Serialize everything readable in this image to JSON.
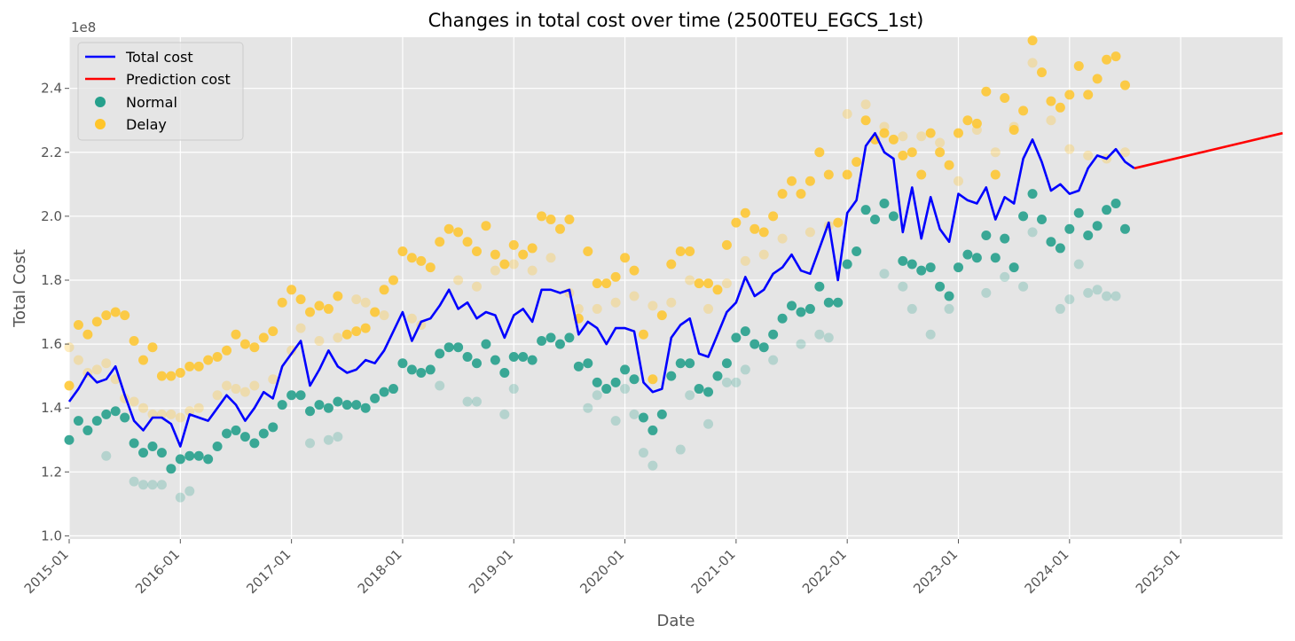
{
  "chart_data": {
    "type": "line",
    "title": "Changes in total cost over time (2500TEU_EGCS_1st)",
    "xlabel": "Date",
    "ylabel": "Total Cost",
    "y_scale_label": "1e8",
    "y_multiplier": 100000000,
    "xlim": [
      "2015-01",
      "2025-12"
    ],
    "ylim": [
      0.99,
      2.56
    ],
    "x_ticks": [
      "2015-01",
      "2016-01",
      "2017-01",
      "2018-01",
      "2019-01",
      "2020-01",
      "2021-01",
      "2022-01",
      "2023-01",
      "2024-01",
      "2025-01"
    ],
    "y_ticks": [
      1.0,
      1.2,
      1.4,
      1.6,
      1.8,
      2.0,
      2.2,
      2.4
    ],
    "y_tick_labels": [
      "1.0",
      "1.2",
      "1.4",
      "1.6",
      "1.8",
      "2.0",
      "2.2",
      "2.4"
    ],
    "grid": true,
    "legend_position": "top-left",
    "colors": {
      "total": "#0000ff",
      "prediction": "#ff0000",
      "normal": "#26a08c",
      "delay": "#ffc52a",
      "background": "#e5e5e5",
      "grid": "#ffffff"
    },
    "series": [
      {
        "name": "Total cost",
        "kind": "line",
        "x": [
          "2015-01",
          "2015-02",
          "2015-03",
          "2015-04",
          "2015-05",
          "2015-06",
          "2015-07",
          "2015-08",
          "2015-09",
          "2015-10",
          "2015-11",
          "2015-12",
          "2016-01",
          "2016-02",
          "2016-03",
          "2016-04",
          "2016-05",
          "2016-06",
          "2016-07",
          "2016-08",
          "2016-09",
          "2016-10",
          "2016-11",
          "2016-12",
          "2017-01",
          "2017-02",
          "2017-03",
          "2017-04",
          "2017-05",
          "2017-06",
          "2017-07",
          "2017-08",
          "2017-09",
          "2017-10",
          "2017-11",
          "2017-12",
          "2018-01",
          "2018-02",
          "2018-03",
          "2018-04",
          "2018-05",
          "2018-06",
          "2018-07",
          "2018-08",
          "2018-09",
          "2018-10",
          "2018-11",
          "2018-12",
          "2019-01",
          "2019-02",
          "2019-03",
          "2019-04",
          "2019-05",
          "2019-06",
          "2019-07",
          "2019-08",
          "2019-09",
          "2019-10",
          "2019-11",
          "2019-12",
          "2020-01",
          "2020-02",
          "2020-03",
          "2020-04",
          "2020-05",
          "2020-06",
          "2020-07",
          "2020-08",
          "2020-09",
          "2020-10",
          "2020-11",
          "2020-12",
          "2021-01",
          "2021-02",
          "2021-03",
          "2021-04",
          "2021-05",
          "2021-06",
          "2021-07",
          "2021-08",
          "2021-09",
          "2021-10",
          "2021-11",
          "2021-12",
          "2022-01",
          "2022-02",
          "2022-03",
          "2022-04",
          "2022-05",
          "2022-06",
          "2022-07",
          "2022-08",
          "2022-09",
          "2022-10",
          "2022-11",
          "2022-12",
          "2023-01",
          "2023-02",
          "2023-03",
          "2023-04",
          "2023-05",
          "2023-06",
          "2023-07",
          "2023-08",
          "2023-09",
          "2023-10",
          "2023-11",
          "2023-12",
          "2024-01",
          "2024-02",
          "2024-03",
          "2024-04",
          "2024-05",
          "2024-06",
          "2024-07",
          "2024-08"
        ],
        "values": [
          1.42,
          1.46,
          1.51,
          1.48,
          1.49,
          1.53,
          1.44,
          1.36,
          1.33,
          1.37,
          1.37,
          1.35,
          1.28,
          1.38,
          1.37,
          1.36,
          1.4,
          1.44,
          1.41,
          1.36,
          1.4,
          1.45,
          1.43,
          1.53,
          1.57,
          1.61,
          1.47,
          1.52,
          1.58,
          1.53,
          1.51,
          1.52,
          1.55,
          1.54,
          1.58,
          1.64,
          1.7,
          1.61,
          1.67,
          1.68,
          1.72,
          1.77,
          1.71,
          1.73,
          1.68,
          1.7,
          1.69,
          1.62,
          1.69,
          1.71,
          1.67,
          1.77,
          1.77,
          1.76,
          1.77,
          1.63,
          1.67,
          1.65,
          1.6,
          1.65,
          1.65,
          1.64,
          1.48,
          1.45,
          1.46,
          1.62,
          1.66,
          1.68,
          1.57,
          1.56,
          1.63,
          1.7,
          1.73,
          1.81,
          1.75,
          1.77,
          1.82,
          1.84,
          1.88,
          1.83,
          1.82,
          1.9,
          1.98,
          1.8,
          2.01,
          2.05,
          2.22,
          2.26,
          2.2,
          2.18,
          1.95,
          2.09,
          1.93,
          2.06,
          1.96,
          1.92,
          2.07,
          2.05,
          2.04,
          2.09,
          1.99,
          2.06,
          2.04,
          2.18,
          2.24,
          2.17,
          2.08,
          2.1,
          2.07,
          2.08,
          2.15,
          2.19,
          2.18,
          2.21,
          2.17,
          2.15
        ]
      },
      {
        "name": "Prediction cost",
        "kind": "line",
        "x": [
          "2024-08",
          "2025-12"
        ],
        "values": [
          2.15,
          2.26
        ]
      },
      {
        "name": "Normal",
        "kind": "scatter",
        "x": [
          "2015-01",
          "2015-02",
          "2015-03",
          "2015-04",
          "2015-05",
          "2015-06",
          "2015-07",
          "2015-08",
          "2015-09",
          "2015-10",
          "2015-11",
          "2015-12",
          "2016-01",
          "2016-02",
          "2016-03",
          "2016-04",
          "2016-05",
          "2016-06",
          "2016-07",
          "2016-08",
          "2016-09",
          "2016-10",
          "2016-11",
          "2016-12",
          "2017-01",
          "2017-02",
          "2017-03",
          "2017-04",
          "2017-05",
          "2017-06",
          "2017-07",
          "2017-08",
          "2017-09",
          "2017-10",
          "2017-11",
          "2017-12",
          "2018-01",
          "2018-02",
          "2018-03",
          "2018-04",
          "2018-05",
          "2018-06",
          "2018-07",
          "2018-08",
          "2018-09",
          "2018-10",
          "2018-11",
          "2018-12",
          "2019-01",
          "2019-02",
          "2019-03",
          "2019-04",
          "2019-05",
          "2019-06",
          "2019-07",
          "2019-08",
          "2019-09",
          "2019-10",
          "2019-11",
          "2019-12",
          "2020-01",
          "2020-02",
          "2020-03",
          "2020-04",
          "2020-05",
          "2020-06",
          "2020-07",
          "2020-08",
          "2020-09",
          "2020-10",
          "2020-11",
          "2020-12",
          "2021-01",
          "2021-02",
          "2021-03",
          "2021-04",
          "2021-05",
          "2021-06",
          "2021-07",
          "2021-08",
          "2021-09",
          "2021-10",
          "2021-11",
          "2021-12",
          "2022-01",
          "2022-02",
          "2022-03",
          "2022-04",
          "2022-05",
          "2022-06",
          "2022-07",
          "2022-08",
          "2022-09",
          "2022-10",
          "2022-11",
          "2022-12",
          "2023-01",
          "2023-02",
          "2023-03",
          "2023-04",
          "2023-05",
          "2023-06",
          "2023-07",
          "2023-08",
          "2023-09",
          "2023-10",
          "2023-11",
          "2023-12",
          "2024-01",
          "2024-02",
          "2024-03",
          "2024-04",
          "2024-05",
          "2024-06",
          "2024-07"
        ],
        "values": [
          1.3,
          1.36,
          1.33,
          1.36,
          1.38,
          1.39,
          1.37,
          1.29,
          1.26,
          1.28,
          1.26,
          1.21,
          1.24,
          1.25,
          1.25,
          1.24,
          1.28,
          1.32,
          1.33,
          1.31,
          1.29,
          1.32,
          1.34,
          1.41,
          1.44,
          1.44,
          1.39,
          1.41,
          1.4,
          1.42,
          1.41,
          1.41,
          1.4,
          1.43,
          1.45,
          1.46,
          1.54,
          1.52,
          1.51,
          1.52,
          1.57,
          1.59,
          1.59,
          1.56,
          1.54,
          1.6,
          1.55,
          1.51,
          1.56,
          1.56,
          1.55,
          1.61,
          1.62,
          1.6,
          1.62,
          1.53,
          1.54,
          1.48,
          1.46,
          1.48,
          1.52,
          1.49,
          1.37,
          1.33,
          1.38,
          1.5,
          1.54,
          1.54,
          1.46,
          1.45,
          1.5,
          1.54,
          1.62,
          1.64,
          1.6,
          1.59,
          1.63,
          1.68,
          1.72,
          1.7,
          1.71,
          1.78,
          1.73,
          1.73,
          1.85,
          1.89,
          2.02,
          1.99,
          2.04,
          2.0,
          1.86,
          1.85,
          1.83,
          1.84,
          1.78,
          1.75,
          1.84,
          1.88,
          1.87,
          1.94,
          1.87,
          1.93,
          1.84,
          2.0,
          2.07,
          1.99,
          1.92,
          1.9,
          1.96,
          2.01,
          1.94,
          1.97,
          2.02,
          2.04,
          1.96
        ]
      },
      {
        "name": "Delay",
        "kind": "scatter",
        "x": [
          "2015-01",
          "2015-02",
          "2015-03",
          "2015-04",
          "2015-05",
          "2015-06",
          "2015-07",
          "2015-08",
          "2015-09",
          "2015-10",
          "2015-11",
          "2015-12",
          "2016-01",
          "2016-02",
          "2016-03",
          "2016-04",
          "2016-05",
          "2016-06",
          "2016-07",
          "2016-08",
          "2016-09",
          "2016-10",
          "2016-11",
          "2016-12",
          "2017-01",
          "2017-02",
          "2017-03",
          "2017-04",
          "2017-05",
          "2017-06",
          "2017-07",
          "2017-08",
          "2017-09",
          "2017-10",
          "2017-11",
          "2017-12",
          "2018-01",
          "2018-02",
          "2018-03",
          "2018-04",
          "2018-05",
          "2018-06",
          "2018-07",
          "2018-08",
          "2018-09",
          "2018-10",
          "2018-11",
          "2018-12",
          "2019-01",
          "2019-02",
          "2019-03",
          "2019-04",
          "2019-05",
          "2019-06",
          "2019-07",
          "2019-08",
          "2019-09",
          "2019-10",
          "2019-11",
          "2019-12",
          "2020-01",
          "2020-02",
          "2020-03",
          "2020-04",
          "2020-05",
          "2020-06",
          "2020-07",
          "2020-08",
          "2020-09",
          "2020-10",
          "2020-11",
          "2020-12",
          "2021-01",
          "2021-02",
          "2021-03",
          "2021-04",
          "2021-05",
          "2021-06",
          "2021-07",
          "2021-08",
          "2021-09",
          "2021-10",
          "2021-11",
          "2021-12",
          "2022-01",
          "2022-02",
          "2022-03",
          "2022-04",
          "2022-05",
          "2022-06",
          "2022-07",
          "2022-08",
          "2022-09",
          "2022-10",
          "2022-11",
          "2022-12",
          "2023-01",
          "2023-02",
          "2023-03",
          "2023-04",
          "2023-05",
          "2023-06",
          "2023-07",
          "2023-08",
          "2023-09",
          "2023-10",
          "2023-11",
          "2023-12",
          "2024-01",
          "2024-02",
          "2024-03",
          "2024-04",
          "2024-05",
          "2024-06",
          "2024-07"
        ],
        "values": [
          1.47,
          1.66,
          1.63,
          1.67,
          1.69,
          1.7,
          1.69,
          1.61,
          1.55,
          1.59,
          1.5,
          1.5,
          1.51,
          1.53,
          1.53,
          1.55,
          1.56,
          1.58,
          1.63,
          1.6,
          1.59,
          1.62,
          1.64,
          1.73,
          1.77,
          1.74,
          1.7,
          1.72,
          1.71,
          1.75,
          1.63,
          1.64,
          1.65,
          1.7,
          1.77,
          1.8,
          1.89,
          1.87,
          1.86,
          1.84,
          1.92,
          1.96,
          1.95,
          1.92,
          1.89,
          1.97,
          1.88,
          1.85,
          1.91,
          1.88,
          1.9,
          2.0,
          1.99,
          1.96,
          1.99,
          1.68,
          1.89,
          1.79,
          1.79,
          1.81,
          1.87,
          1.83,
          1.63,
          1.49,
          1.69,
          1.85,
          1.89,
          1.89,
          1.79,
          1.79,
          1.77,
          1.91,
          1.98,
          2.01,
          1.96,
          1.95,
          2.0,
          2.07,
          2.11,
          2.07,
          2.11,
          2.2,
          2.13,
          1.98,
          2.13,
          2.17,
          2.3,
          2.24,
          2.26,
          2.24,
          2.19,
          2.2,
          2.13,
          2.26,
          2.2,
          2.16,
          2.26,
          2.3,
          2.29,
          2.39,
          2.13,
          2.37,
          2.27,
          2.33,
          2.55,
          2.45,
          2.36,
          2.34,
          2.38,
          2.47,
          2.38,
          2.43,
          2.49,
          2.5,
          2.41
        ]
      }
    ],
    "faint_normal": {
      "x": [
        "2015-05",
        "2015-08",
        "2015-09",
        "2015-10",
        "2015-11",
        "2016-01",
        "2016-02",
        "2017-03",
        "2017-05",
        "2017-06",
        "2018-05",
        "2018-08",
        "2018-09",
        "2018-12",
        "2019-01",
        "2019-09",
        "2019-10",
        "2019-12",
        "2020-01",
        "2020-02",
        "2020-03",
        "2020-04",
        "2020-07",
        "2020-08",
        "2020-10",
        "2020-12",
        "2021-01",
        "2021-02",
        "2021-05",
        "2021-08",
        "2021-10",
        "2021-11",
        "2022-05",
        "2022-07",
        "2022-08",
        "2022-10",
        "2022-12",
        "2023-04",
        "2023-06",
        "2023-08",
        "2023-09",
        "2023-12",
        "2024-01",
        "2024-02",
        "2024-03",
        "2024-04",
        "2024-05",
        "2024-06"
      ],
      "values": [
        1.25,
        1.17,
        1.16,
        1.16,
        1.16,
        1.12,
        1.14,
        1.29,
        1.3,
        1.31,
        1.47,
        1.42,
        1.42,
        1.38,
        1.46,
        1.4,
        1.44,
        1.36,
        1.46,
        1.38,
        1.26,
        1.22,
        1.27,
        1.44,
        1.35,
        1.48,
        1.48,
        1.52,
        1.55,
        1.6,
        1.63,
        1.62,
        1.82,
        1.78,
        1.71,
        1.63,
        1.71,
        1.76,
        1.81,
        1.78,
        1.95,
        1.71,
        1.74,
        1.85,
        1.76,
        1.77,
        1.75,
        1.75
      ]
    },
    "faint_delay": {
      "x": [
        "2015-01",
        "2015-02",
        "2015-03",
        "2015-04",
        "2015-05",
        "2015-06",
        "2015-07",
        "2015-08",
        "2015-09",
        "2015-10",
        "2015-11",
        "2015-12",
        "2016-01",
        "2016-02",
        "2016-03",
        "2016-05",
        "2016-06",
        "2016-07",
        "2016-08",
        "2016-09",
        "2016-11",
        "2017-01",
        "2017-02",
        "2017-04",
        "2017-06",
        "2017-08",
        "2017-09",
        "2017-11",
        "2018-02",
        "2018-03",
        "2018-07",
        "2018-09",
        "2018-11",
        "2019-01",
        "2019-03",
        "2019-05",
        "2019-07",
        "2019-08",
        "2019-10",
        "2019-12",
        "2020-02",
        "2020-04",
        "2020-06",
        "2020-08",
        "2020-10",
        "2020-12",
        "2021-02",
        "2021-04",
        "2021-06",
        "2021-09",
        "2021-11",
        "2022-01",
        "2022-03",
        "2022-05",
        "2022-07",
        "2022-09",
        "2022-11",
        "2023-01",
        "2023-03",
        "2023-05",
        "2023-07",
        "2023-09",
        "2023-11",
        "2024-01",
        "2024-03",
        "2024-05",
        "2024-07"
      ],
      "values": [
        1.59,
        1.55,
        1.51,
        1.52,
        1.54,
        1.49,
        1.43,
        1.42,
        1.4,
        1.38,
        1.38,
        1.38,
        1.37,
        1.39,
        1.4,
        1.44,
        1.47,
        1.46,
        1.45,
        1.47,
        1.49,
        1.58,
        1.65,
        1.61,
        1.62,
        1.74,
        1.73,
        1.69,
        1.68,
        1.66,
        1.8,
        1.78,
        1.83,
        1.85,
        1.83,
        1.87,
        1.76,
        1.71,
        1.71,
        1.73,
        1.75,
        1.72,
        1.73,
        1.8,
        1.71,
        1.79,
        1.86,
        1.88,
        1.93,
        1.95,
        1.97,
        2.32,
        2.35,
        2.28,
        2.25,
        2.25,
        2.23,
        2.11,
        2.27,
        2.2,
        2.28,
        2.48,
        2.3,
        2.21,
        2.19,
        2.18,
        2.2
      ]
    }
  }
}
